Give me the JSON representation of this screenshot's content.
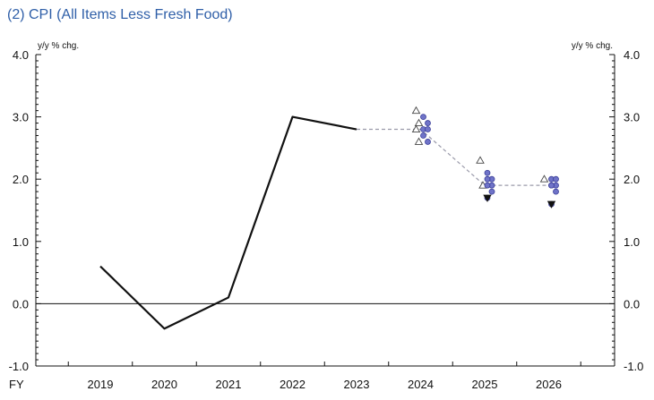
{
  "chart_data": {
    "type": "line",
    "title": "(2) CPI (All Items Less Fresh Food)",
    "ylabel_left": "y/y % chg.",
    "ylabel_right": "y/y % chg.",
    "xlabel": "FY",
    "categories": [
      "2019",
      "2020",
      "2021",
      "2022",
      "2023",
      "2024",
      "2025",
      "2026"
    ],
    "ylim": [
      -1.0,
      4.0
    ],
    "yticks": [
      "4.0",
      "3.0",
      "2.0",
      "1.0",
      "0.0",
      "-1.0"
    ],
    "series": [
      {
        "values": [
          0.6,
          -0.4,
          0.1,
          3.0,
          2.8,
          null,
          null,
          null
        ],
        "style": "solid",
        "color": "#111111"
      },
      {
        "values": [
          null,
          null,
          null,
          null,
          2.8,
          2.8,
          1.9,
          1.9
        ],
        "style": "dashed",
        "color": "#9a9aaa"
      }
    ],
    "forecast_points": [
      {
        "x": "2024",
        "symbol": "triangle-up",
        "values": [
          3.1,
          2.9,
          2.8,
          2.6
        ]
      },
      {
        "x": "2024",
        "symbol": "circle",
        "values": [
          3.0,
          2.9,
          2.8,
          2.8,
          2.7,
          2.6
        ]
      },
      {
        "x": "2025",
        "symbol": "triangle-up",
        "values": [
          2.3,
          1.9
        ]
      },
      {
        "x": "2025",
        "symbol": "circle",
        "values": [
          2.1,
          2.0,
          2.0,
          1.9,
          1.9,
          1.8,
          1.7
        ]
      },
      {
        "x": "2025",
        "symbol": "triangle-down",
        "values": [
          1.7
        ]
      },
      {
        "x": "2026",
        "symbol": "triangle-up",
        "values": [
          2.0
        ]
      },
      {
        "x": "2026",
        "symbol": "circle",
        "values": [
          2.0,
          2.0,
          1.9,
          1.9,
          1.9,
          1.8,
          1.6
        ]
      },
      {
        "x": "2026",
        "symbol": "triangle-down",
        "values": [
          1.6
        ]
      }
    ],
    "grid": false,
    "zero_line": true,
    "colors": {
      "actual": "#111111",
      "forecast": "#9a9aaa",
      "circle": "#6f73c8",
      "circle_stroke": "#3b3f9a",
      "triangle": "#111111"
    }
  }
}
